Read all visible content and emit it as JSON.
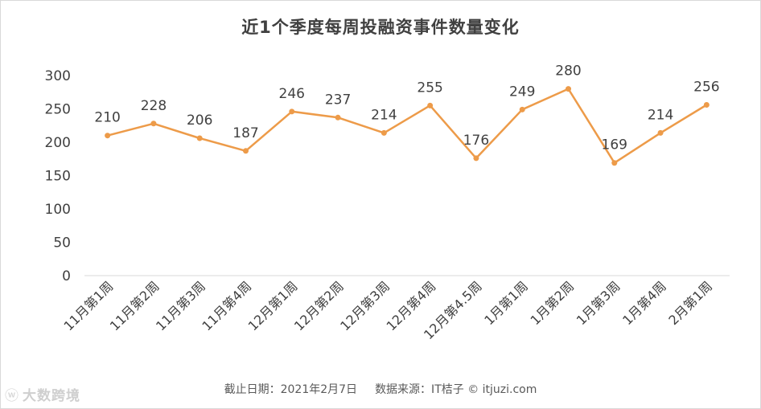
{
  "title": "近1个季度每周投融资事件数量变化",
  "footer": {
    "date": "截止日期：2021年2月7日",
    "source": "数据来源：IT桔子 © itjuzi.com"
  },
  "watermark": {
    "text": "大数跨境",
    "icon": "weibo-icon"
  },
  "colors": {
    "line": "#ED9B49",
    "axis": "#d9d9d9",
    "text": "#404040"
  },
  "chart_data": {
    "type": "line",
    "title": "近1个季度每周投融资事件数量变化",
    "xlabel": "",
    "ylabel": "",
    "categories": [
      "11月第1周",
      "11月第2周",
      "11月第3周",
      "11月第4周",
      "12月第1周",
      "12月第2周",
      "12月第3周",
      "12月第4周",
      "12月第4.5周",
      "1月第1周",
      "1月第2周",
      "1月第3周",
      "1月第4周",
      "2月第1周"
    ],
    "values": [
      210,
      228,
      206,
      187,
      246,
      237,
      214,
      255,
      176,
      249,
      280,
      169,
      214,
      256
    ],
    "yticks": [
      0,
      50,
      100,
      150,
      200,
      250,
      300
    ],
    "ylim": [
      0,
      300
    ],
    "grid": false,
    "legend": "none",
    "data_labels": true
  }
}
